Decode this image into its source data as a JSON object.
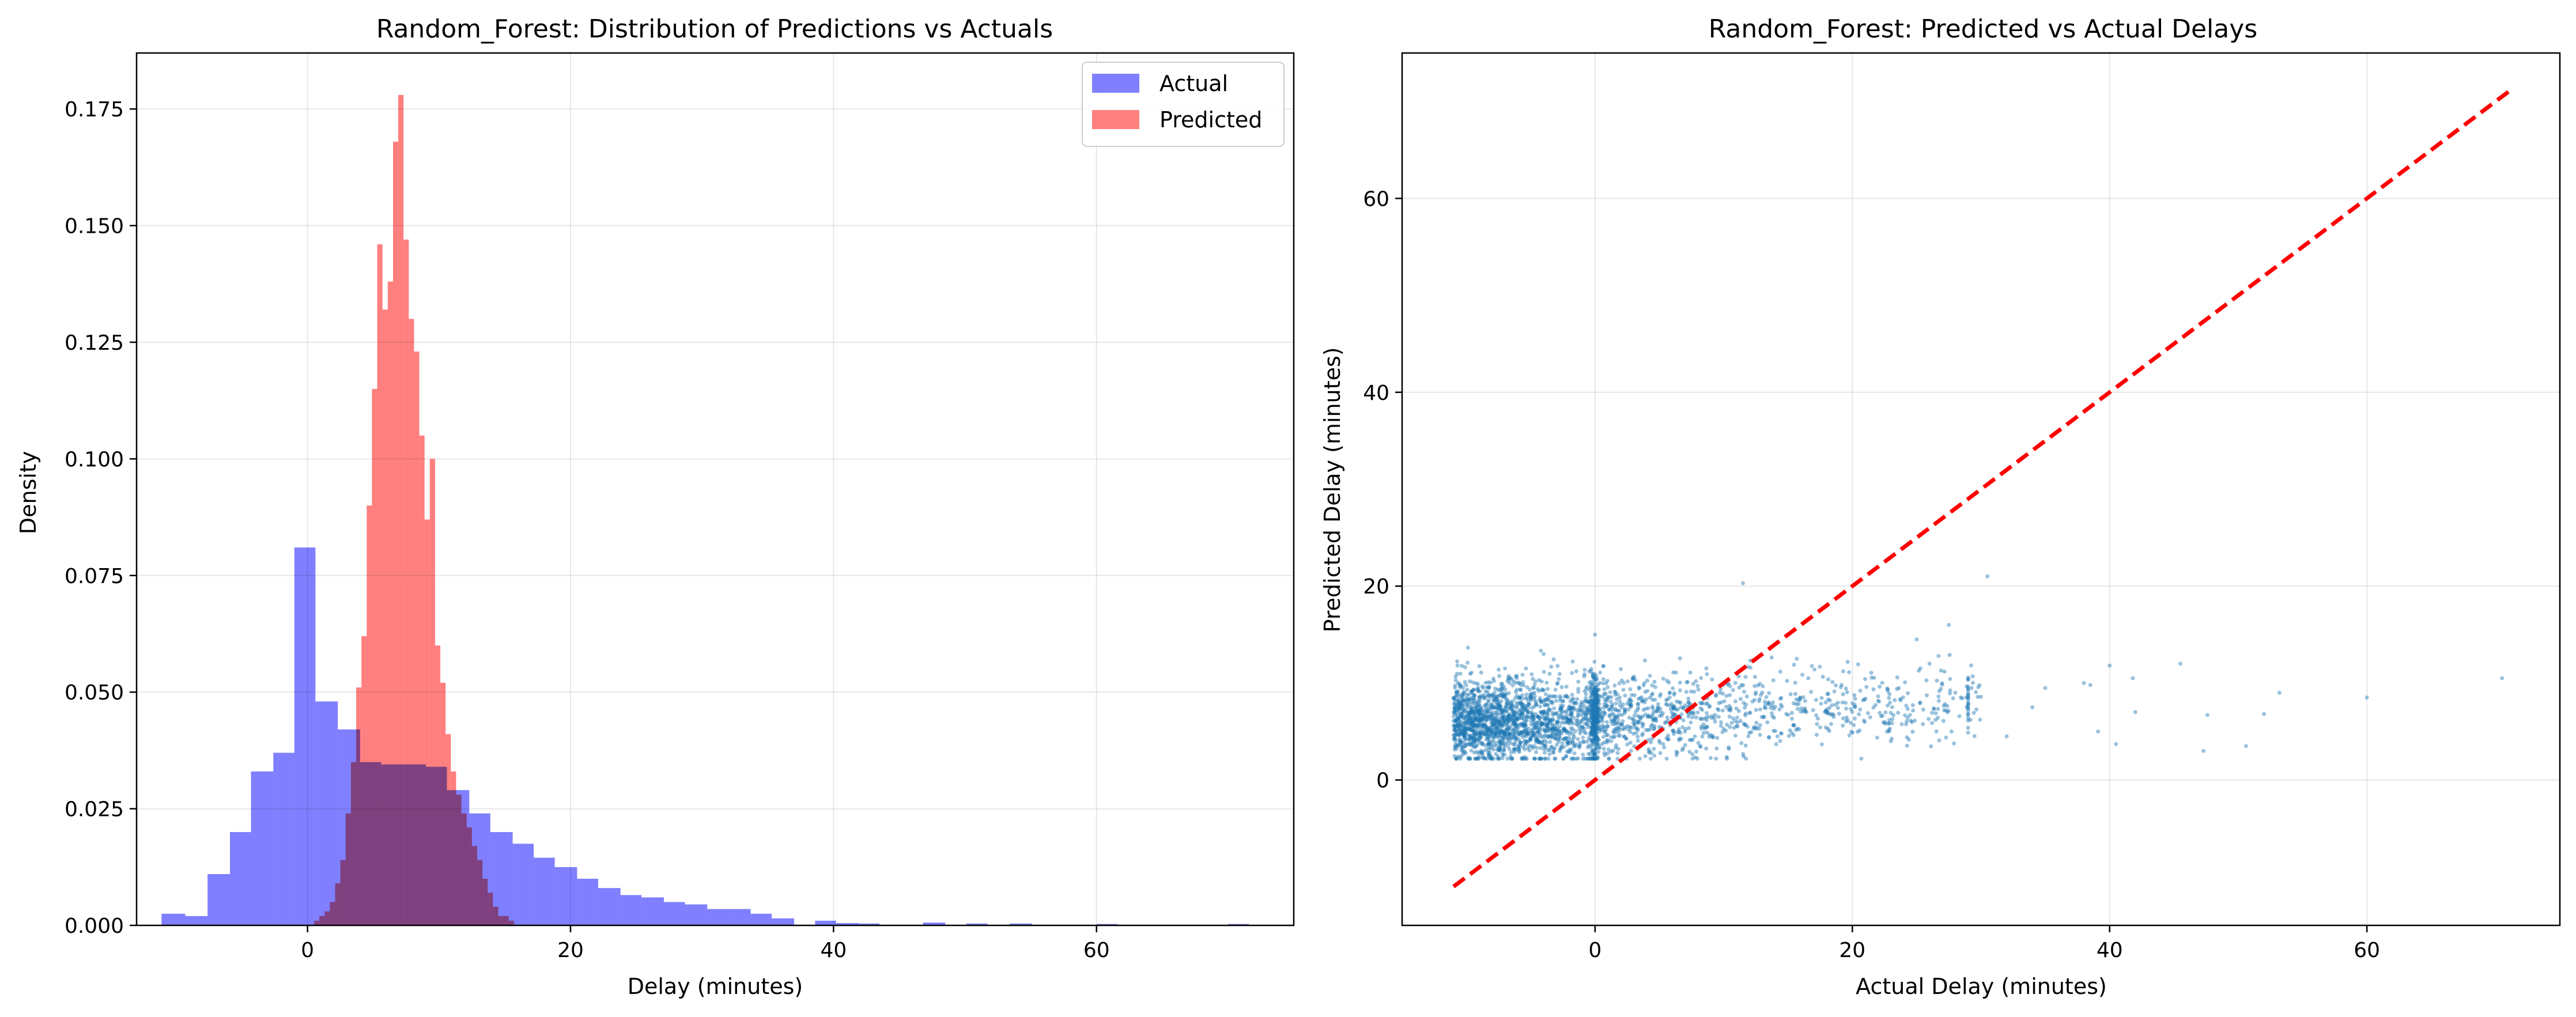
{
  "chart_data": [
    {
      "type": "histogram",
      "title": "Random_Forest: Distribution of Predictions vs Actuals",
      "xlabel": "Delay (minutes)",
      "ylabel": "Density",
      "xlim": [
        -13,
        75
      ],
      "ylim": [
        0,
        0.187
      ],
      "x_ticks": [
        0,
        20,
        40,
        60
      ],
      "y_ticks": [
        0.0,
        0.025,
        0.05,
        0.075,
        0.1,
        0.125,
        0.15,
        0.175
      ],
      "y_tick_labels": [
        "0.000",
        "0.025",
        "0.050",
        "0.075",
        "0.100",
        "0.125",
        "0.150",
        "0.175"
      ],
      "grid": true,
      "legend_position": "top-right",
      "series": [
        {
          "name": "Actual",
          "color": "#7f7fff",
          "bins": [
            {
              "x0": -11.1,
              "x1": -9.3,
              "y": 0.0025
            },
            {
              "x0": -9.3,
              "x1": -7.6,
              "y": 0.002
            },
            {
              "x0": -7.6,
              "x1": -5.9,
              "y": 0.011
            },
            {
              "x0": -5.9,
              "x1": -4.3,
              "y": 0.02
            },
            {
              "x0": -4.3,
              "x1": -2.6,
              "y": 0.033
            },
            {
              "x0": -2.6,
              "x1": -1.0,
              "y": 0.037
            },
            {
              "x0": -1.0,
              "x1": 0.6,
              "y": 0.081
            },
            {
              "x0": 0.6,
              "x1": 2.3,
              "y": 0.048
            },
            {
              "x0": 2.3,
              "x1": 4.0,
              "y": 0.042
            },
            {
              "x0": 4.0,
              "x1": 5.6,
              "y": 0.035
            },
            {
              "x0": 5.6,
              "x1": 7.3,
              "y": 0.0345
            },
            {
              "x0": 7.3,
              "x1": 9.0,
              "y": 0.0345
            },
            {
              "x0": 9.0,
              "x1": 10.6,
              "y": 0.034
            },
            {
              "x0": 10.6,
              "x1": 12.3,
              "y": 0.029
            },
            {
              "x0": 12.3,
              "x1": 13.9,
              "y": 0.024
            },
            {
              "x0": 13.9,
              "x1": 15.6,
              "y": 0.02
            },
            {
              "x0": 15.6,
              "x1": 17.2,
              "y": 0.0175
            },
            {
              "x0": 17.2,
              "x1": 18.8,
              "y": 0.0145
            },
            {
              "x0": 18.8,
              "x1": 20.5,
              "y": 0.0125
            },
            {
              "x0": 20.5,
              "x1": 22.1,
              "y": 0.01
            },
            {
              "x0": 22.1,
              "x1": 23.8,
              "y": 0.008
            },
            {
              "x0": 23.8,
              "x1": 25.4,
              "y": 0.0065
            },
            {
              "x0": 25.4,
              "x1": 27.1,
              "y": 0.006
            },
            {
              "x0": 27.1,
              "x1": 28.7,
              "y": 0.005
            },
            {
              "x0": 28.7,
              "x1": 30.4,
              "y": 0.0045
            },
            {
              "x0": 30.4,
              "x1": 32.0,
              "y": 0.0035
            },
            {
              "x0": 32.0,
              "x1": 33.7,
              "y": 0.0035
            },
            {
              "x0": 33.7,
              "x1": 35.3,
              "y": 0.0025
            },
            {
              "x0": 35.3,
              "x1": 37.0,
              "y": 0.0015
            },
            {
              "x0": 38.6,
              "x1": 40.2,
              "y": 0.001
            },
            {
              "x0": 40.2,
              "x1": 41.9,
              "y": 0.0005
            },
            {
              "x0": 41.9,
              "x1": 43.5,
              "y": 0.0004
            },
            {
              "x0": 46.8,
              "x1": 48.5,
              "y": 0.0006
            },
            {
              "x0": 50.1,
              "x1": 51.7,
              "y": 0.0004
            },
            {
              "x0": 53.4,
              "x1": 55.1,
              "y": 0.0004
            },
            {
              "x0": 60.0,
              "x1": 61.6,
              "y": 0.0003
            },
            {
              "x0": 70.0,
              "x1": 71.6,
              "y": 0.0003
            }
          ]
        },
        {
          "name": "Predicted",
          "color": "#ff7f7f",
          "bins": [
            {
              "x0": 0.5,
              "x1": 0.9,
              "y": 0.001
            },
            {
              "x0": 0.9,
              "x1": 1.3,
              "y": 0.002
            },
            {
              "x0": 1.3,
              "x1": 1.7,
              "y": 0.003
            },
            {
              "x0": 1.7,
              "x1": 2.1,
              "y": 0.005
            },
            {
              "x0": 2.1,
              "x1": 2.5,
              "y": 0.009
            },
            {
              "x0": 2.5,
              "x1": 2.9,
              "y": 0.014
            },
            {
              "x0": 2.9,
              "x1": 3.3,
              "y": 0.024
            },
            {
              "x0": 3.3,
              "x1": 3.7,
              "y": 0.035
            },
            {
              "x0": 3.7,
              "x1": 4.1,
              "y": 0.051
            },
            {
              "x0": 4.1,
              "x1": 4.5,
              "y": 0.062
            },
            {
              "x0": 4.5,
              "x1": 4.9,
              "y": 0.09
            },
            {
              "x0": 4.9,
              "x1": 5.3,
              "y": 0.115
            },
            {
              "x0": 5.3,
              "x1": 5.7,
              "y": 0.146
            },
            {
              "x0": 5.7,
              "x1": 6.1,
              "y": 0.132
            },
            {
              "x0": 6.1,
              "x1": 6.5,
              "y": 0.138
            },
            {
              "x0": 6.5,
              "x1": 6.9,
              "y": 0.168
            },
            {
              "x0": 6.9,
              "x1": 7.3,
              "y": 0.178
            },
            {
              "x0": 7.3,
              "x1": 7.7,
              "y": 0.147
            },
            {
              "x0": 7.7,
              "x1": 8.1,
              "y": 0.13
            },
            {
              "x0": 8.1,
              "x1": 8.5,
              "y": 0.123
            },
            {
              "x0": 8.5,
              "x1": 8.9,
              "y": 0.105
            },
            {
              "x0": 8.9,
              "x1": 9.3,
              "y": 0.087
            },
            {
              "x0": 9.3,
              "x1": 9.7,
              "y": 0.1
            },
            {
              "x0": 9.7,
              "x1": 10.1,
              "y": 0.06
            },
            {
              "x0": 10.1,
              "x1": 10.5,
              "y": 0.052
            },
            {
              "x0": 10.5,
              "x1": 10.9,
              "y": 0.041
            },
            {
              "x0": 10.9,
              "x1": 11.3,
              "y": 0.033
            },
            {
              "x0": 11.3,
              "x1": 11.7,
              "y": 0.028
            },
            {
              "x0": 11.7,
              "x1": 12.1,
              "y": 0.024
            },
            {
              "x0": 12.1,
              "x1": 12.5,
              "y": 0.021
            },
            {
              "x0": 12.5,
              "x1": 12.9,
              "y": 0.017
            },
            {
              "x0": 12.9,
              "x1": 13.3,
              "y": 0.014
            },
            {
              "x0": 13.3,
              "x1": 13.7,
              "y": 0.01
            },
            {
              "x0": 13.7,
              "x1": 14.1,
              "y": 0.007
            },
            {
              "x0": 14.1,
              "x1": 14.5,
              "y": 0.004
            },
            {
              "x0": 14.5,
              "x1": 14.9,
              "y": 0.002
            },
            {
              "x0": 14.9,
              "x1": 15.3,
              "y": 0.002
            },
            {
              "x0": 15.3,
              "x1": 15.7,
              "y": 0.001
            }
          ]
        }
      ]
    },
    {
      "type": "scatter",
      "title": "Random_Forest: Predicted vs Actual Delays",
      "xlabel": "Actual Delay (minutes)",
      "ylabel": "Predicted Delay (minutes)",
      "xlim": [
        -15,
        75
      ],
      "ylim": [
        -15,
        75
      ],
      "x_ticks": [
        0,
        20,
        40,
        60
      ],
      "y_ticks": [
        0,
        20,
        40,
        60
      ],
      "grid": true,
      "point_color": "#1f77b4",
      "reference_line": {
        "style": "dashed",
        "color": "#ff0000",
        "points": [
          [
            -11,
            -11
          ],
          [
            71,
            71
          ]
        ]
      },
      "points": [
        [
          11.5,
          20.3
        ],
        [
          30.5,
          21.0
        ],
        [
          70.5,
          10.5
        ],
        [
          60.0,
          8.5
        ],
        [
          53.2,
          9.0
        ],
        [
          50.6,
          3.5
        ],
        [
          52.0,
          6.8
        ],
        [
          47.3,
          3.0
        ],
        [
          47.6,
          6.7
        ],
        [
          45.5,
          12.0
        ],
        [
          42.0,
          7.0
        ],
        [
          41.8,
          10.5
        ],
        [
          40.0,
          11.8
        ],
        [
          39.1,
          5.0
        ],
        [
          40.5,
          3.7
        ],
        [
          38.0,
          10.0
        ],
        [
          38.5,
          9.8
        ],
        [
          35.0,
          9.5
        ],
        [
          34.0,
          7.5
        ],
        [
          27.5,
          16.0
        ],
        [
          25.0,
          14.5
        ],
        [
          26.0,
          12.0
        ],
        [
          28.0,
          9.0
        ],
        [
          32.0,
          4.5
        ],
        [
          -8.0,
          3.5
        ],
        [
          -9.5,
          6.0
        ],
        [
          -10.5,
          8.0
        ],
        [
          -7.0,
          11.5
        ],
        [
          -4.0,
          13.0
        ],
        [
          0.0,
          15.0
        ]
      ],
      "scatter_cloud": {
        "approx_points": 2900,
        "description_x_range": [
          -11,
          72
        ],
        "dense_center": [
          2,
          7
        ],
        "y_range": [
          2,
          16
        ]
      }
    }
  ]
}
